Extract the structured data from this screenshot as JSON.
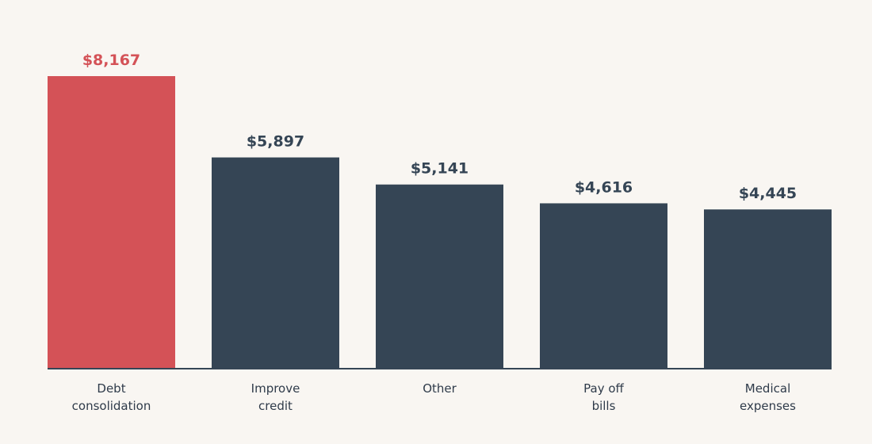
{
  "chart_data": {
    "type": "bar",
    "title": "",
    "xlabel": "",
    "ylabel": "",
    "ylim": [
      0,
      8167
    ],
    "grid": false,
    "categories": [
      [
        "Debt",
        "consolidation"
      ],
      [
        "Improve",
        "credit"
      ],
      [
        "Other"
      ],
      [
        "Pay off",
        "bills"
      ],
      [
        "Medical",
        "expenses"
      ]
    ],
    "values": [
      8167,
      5897,
      5141,
      4616,
      4445
    ],
    "value_labels": [
      "$8,167",
      "$5,897",
      "$5,141",
      "$4,616",
      "$4,445"
    ],
    "highlight_index": 0,
    "colors": {
      "highlight": "#d45257",
      "default": "#354555",
      "highlight_label": "#d45257",
      "default_label": "#354555",
      "axis": "#354555",
      "background": "#f9f6f2"
    }
  }
}
